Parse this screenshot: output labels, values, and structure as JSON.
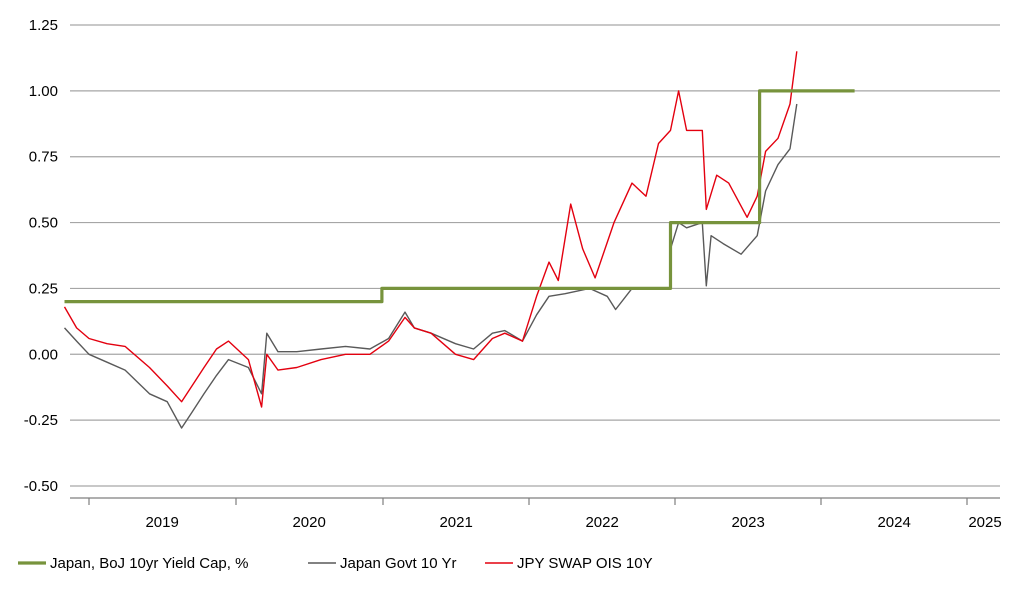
{
  "chart_data": {
    "type": "line",
    "title": "",
    "xlabel": "",
    "ylabel": "",
    "ylim": [
      -0.5,
      1.25
    ],
    "yticks": [
      "1.25",
      "1.00",
      "0.75",
      "0.50",
      "0.25",
      "0.00",
      "-0.25",
      "-0.50"
    ],
    "xticks": [
      "2019",
      "2020",
      "2021",
      "2022",
      "2023",
      "2024",
      "2025"
    ],
    "grid": "horizontal",
    "legend_position": "bottom",
    "colors": {
      "yield_cap": "#77933c",
      "jgb": "#595959",
      "ois": "#e3000f",
      "grid": "#a6a6a6",
      "axis": "#7f7f7f"
    },
    "series": [
      {
        "name": "Japan, BoJ 10yr Yield Cap, %",
        "color": "#77933c",
        "points": [
          [
            "2018-11-01",
            0.2
          ],
          [
            "2020-12-31",
            0.2
          ],
          [
            "2020-12-31",
            0.25
          ],
          [
            "2022-12-20",
            0.25
          ],
          [
            "2022-12-20",
            0.5
          ],
          [
            "2023-07-31",
            0.5
          ],
          [
            "2023-07-31",
            1.0
          ],
          [
            "2024-03-25",
            1.0
          ]
        ]
      },
      {
        "name": "Japan Govt 10 Yr",
        "color": "#595959",
        "points": [
          [
            "2018-11-01",
            0.1
          ],
          [
            "2018-12-01",
            0.05
          ],
          [
            "2019-01-01",
            0.0
          ],
          [
            "2019-02-15",
            -0.03
          ],
          [
            "2019-04-01",
            -0.06
          ],
          [
            "2019-06-01",
            -0.15
          ],
          [
            "2019-07-15",
            -0.18
          ],
          [
            "2019-08-20",
            -0.28
          ],
          [
            "2019-09-15",
            -0.22
          ],
          [
            "2019-10-15",
            -0.15
          ],
          [
            "2019-11-15",
            -0.08
          ],
          [
            "2019-12-15",
            -0.02
          ],
          [
            "2020-02-01",
            -0.05
          ],
          [
            "2020-03-05",
            -0.15
          ],
          [
            "2020-03-18",
            0.08
          ],
          [
            "2020-04-15",
            0.01
          ],
          [
            "2020-06-01",
            0.01
          ],
          [
            "2020-08-01",
            0.02
          ],
          [
            "2020-10-01",
            0.03
          ],
          [
            "2020-12-01",
            0.02
          ],
          [
            "2021-01-15",
            0.06
          ],
          [
            "2021-02-25",
            0.16
          ],
          [
            "2021-03-20",
            0.1
          ],
          [
            "2021-05-01",
            0.08
          ],
          [
            "2021-07-01",
            0.04
          ],
          [
            "2021-08-15",
            0.02
          ],
          [
            "2021-10-01",
            0.08
          ],
          [
            "2021-11-01",
            0.09
          ],
          [
            "2021-12-15",
            0.05
          ],
          [
            "2022-01-20",
            0.15
          ],
          [
            "2022-02-20",
            0.22
          ],
          [
            "2022-04-01",
            0.23
          ],
          [
            "2022-06-01",
            0.25
          ],
          [
            "2022-07-15",
            0.22
          ],
          [
            "2022-08-05",
            0.17
          ],
          [
            "2022-09-15",
            0.25
          ],
          [
            "2022-11-01",
            0.25
          ],
          [
            "2022-12-19",
            0.25
          ],
          [
            "2022-12-20",
            0.4
          ],
          [
            "2023-01-10",
            0.5
          ],
          [
            "2023-01-30",
            0.48
          ],
          [
            "2023-03-10",
            0.5
          ],
          [
            "2023-03-20",
            0.26
          ],
          [
            "2023-04-01",
            0.45
          ],
          [
            "2023-05-01",
            0.42
          ],
          [
            "2023-06-15",
            0.38
          ],
          [
            "2023-07-25",
            0.45
          ],
          [
            "2023-08-15",
            0.62
          ],
          [
            "2023-09-15",
            0.72
          ],
          [
            "2023-10-15",
            0.78
          ],
          [
            "2023-11-01",
            0.95
          ]
        ]
      },
      {
        "name": "JPY SWAP OIS 10Y",
        "color": "#e3000f",
        "points": [
          [
            "2018-11-01",
            0.18
          ],
          [
            "2018-12-01",
            0.1
          ],
          [
            "2019-01-01",
            0.06
          ],
          [
            "2019-02-15",
            0.04
          ],
          [
            "2019-04-01",
            0.03
          ],
          [
            "2019-06-01",
            -0.05
          ],
          [
            "2019-07-15",
            -0.12
          ],
          [
            "2019-08-20",
            -0.18
          ],
          [
            "2019-09-15",
            -0.12
          ],
          [
            "2019-10-15",
            -0.05
          ],
          [
            "2019-11-15",
            0.02
          ],
          [
            "2019-12-15",
            0.05
          ],
          [
            "2020-02-01",
            -0.02
          ],
          [
            "2020-03-05",
            -0.2
          ],
          [
            "2020-03-18",
            0.0
          ],
          [
            "2020-04-15",
            -0.06
          ],
          [
            "2020-06-01",
            -0.05
          ],
          [
            "2020-08-01",
            -0.02
          ],
          [
            "2020-10-01",
            0.0
          ],
          [
            "2020-12-01",
            0.0
          ],
          [
            "2021-01-15",
            0.05
          ],
          [
            "2021-02-25",
            0.14
          ],
          [
            "2021-03-20",
            0.1
          ],
          [
            "2021-05-01",
            0.08
          ],
          [
            "2021-07-01",
            0.0
          ],
          [
            "2021-08-15",
            -0.02
          ],
          [
            "2021-10-01",
            0.06
          ],
          [
            "2021-11-01",
            0.08
          ],
          [
            "2021-12-15",
            0.05
          ],
          [
            "2022-01-20",
            0.22
          ],
          [
            "2022-02-20",
            0.35
          ],
          [
            "2022-03-15",
            0.28
          ],
          [
            "2022-04-15",
            0.57
          ],
          [
            "2022-05-15",
            0.4
          ],
          [
            "2022-06-15",
            0.29
          ],
          [
            "2022-08-01",
            0.5
          ],
          [
            "2022-09-15",
            0.65
          ],
          [
            "2022-10-20",
            0.6
          ],
          [
            "2022-11-20",
            0.8
          ],
          [
            "2022-12-20",
            0.85
          ],
          [
            "2023-01-10",
            1.0
          ],
          [
            "2023-01-30",
            0.85
          ],
          [
            "2023-03-10",
            0.85
          ],
          [
            "2023-03-20",
            0.55
          ],
          [
            "2023-04-15",
            0.68
          ],
          [
            "2023-05-15",
            0.65
          ],
          [
            "2023-06-30",
            0.52
          ],
          [
            "2023-07-25",
            0.6
          ],
          [
            "2023-08-15",
            0.77
          ],
          [
            "2023-09-15",
            0.82
          ],
          [
            "2023-10-15",
            0.95
          ],
          [
            "2023-11-01",
            1.15
          ]
        ]
      }
    ]
  }
}
